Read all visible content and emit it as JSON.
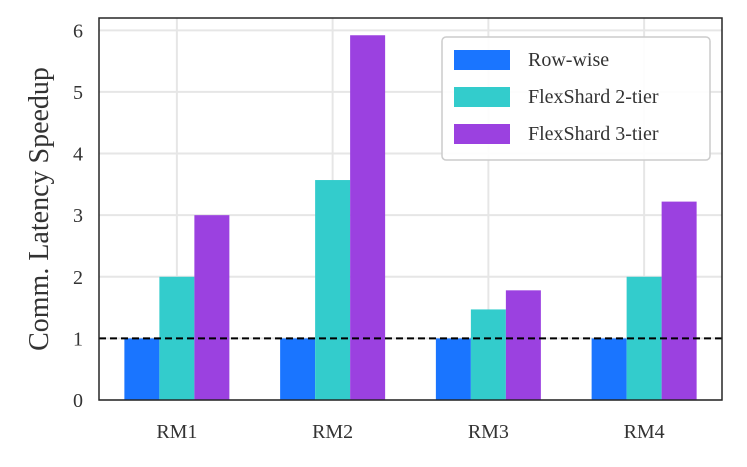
{
  "chart_data": {
    "type": "bar",
    "categories": [
      "RM1",
      "RM2",
      "RM3",
      "RM4"
    ],
    "series": [
      {
        "name": "Row-wise",
        "color": "#1a75ff",
        "values": [
          1.0,
          1.0,
          1.0,
          1.0
        ]
      },
      {
        "name": "FlexShard 2-tier",
        "color": "#33cccc",
        "values": [
          2.0,
          3.57,
          1.47,
          2.0
        ]
      },
      {
        "name": "FlexShard 3-tier",
        "color": "#9b41e0",
        "values": [
          3.0,
          5.92,
          1.78,
          3.22
        ]
      }
    ],
    "title": "",
    "xlabel": "",
    "ylabel": "Comm. Latency Speedup",
    "ylim": [
      0,
      6.2
    ],
    "yticks": [
      0,
      1,
      2,
      3,
      4,
      5,
      6
    ],
    "reference_line": {
      "y": 1,
      "style": "dashed",
      "color": "#000000"
    },
    "grid": true,
    "legend_position": "top-right"
  }
}
